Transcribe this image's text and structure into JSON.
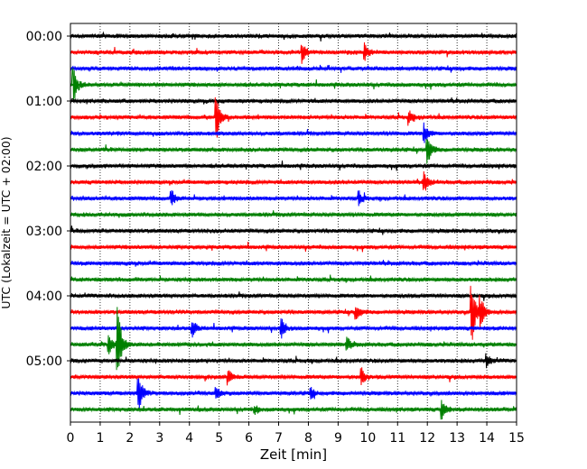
{
  "chart_data": {
    "type": "line",
    "subtype": "helicorder",
    "xlabel": "Zeit  [min]",
    "ylabel": "UTC (Lokalzeit = UTC + 02:00)",
    "xlim": [
      0,
      15
    ],
    "x_ticks": [
      "0",
      "1",
      "2",
      "3",
      "4",
      "5",
      "6",
      "7",
      "8",
      "9",
      "10",
      "11",
      "12",
      "13",
      "14",
      "15"
    ],
    "row_minutes": 15,
    "row_time_labels": [
      "00:00",
      "01:00",
      "02:00",
      "03:00",
      "04:00",
      "05:00"
    ],
    "vertical_grid": "dotted, every 1 min",
    "trace_color_cycle": [
      "#000000",
      "#ff0000",
      "#0000ff",
      "#008000"
    ],
    "traces": [
      {
        "row": 0,
        "start": "00:00",
        "color": "#000000",
        "events": []
      },
      {
        "row": 1,
        "start": "00:15",
        "color": "#ff0000",
        "events": [
          {
            "t": 7.8,
            "amp": 0.6
          },
          {
            "t": 9.9,
            "amp": 0.5
          }
        ]
      },
      {
        "row": 2,
        "start": "00:30",
        "color": "#0000ff",
        "events": []
      },
      {
        "row": 3,
        "start": "00:45",
        "color": "#008000",
        "events": [
          {
            "t": 0.1,
            "amp": 1.2
          }
        ]
      },
      {
        "row": 4,
        "start": "01:00",
        "color": "#000000",
        "events": []
      },
      {
        "row": 5,
        "start": "01:15",
        "color": "#ff0000",
        "events": [
          {
            "t": 4.9,
            "amp": 1.6
          },
          {
            "t": 11.4,
            "amp": 0.4
          }
        ]
      },
      {
        "row": 6,
        "start": "01:30",
        "color": "#0000ff",
        "events": [
          {
            "t": 11.9,
            "amp": 0.6
          }
        ]
      },
      {
        "row": 7,
        "start": "01:45",
        "color": "#008000",
        "events": [
          {
            "t": 12.0,
            "amp": 0.9
          }
        ]
      },
      {
        "row": 8,
        "start": "02:00",
        "color": "#000000",
        "events": []
      },
      {
        "row": 9,
        "start": "02:15",
        "color": "#ff0000",
        "events": [
          {
            "t": 11.9,
            "amp": 0.6
          }
        ]
      },
      {
        "row": 10,
        "start": "02:30",
        "color": "#0000ff",
        "events": [
          {
            "t": 3.4,
            "amp": 0.5
          },
          {
            "t": 9.7,
            "amp": 0.4
          }
        ]
      },
      {
        "row": 11,
        "start": "02:45",
        "color": "#008000",
        "events": []
      },
      {
        "row": 12,
        "start": "03:00",
        "color": "#000000",
        "events": []
      },
      {
        "row": 13,
        "start": "03:15",
        "color": "#ff0000",
        "events": []
      },
      {
        "row": 14,
        "start": "03:30",
        "color": "#0000ff",
        "events": []
      },
      {
        "row": 15,
        "start": "03:45",
        "color": "#008000",
        "events": []
      },
      {
        "row": 16,
        "start": "04:00",
        "color": "#000000",
        "events": []
      },
      {
        "row": 17,
        "start": "04:15",
        "color": "#ff0000",
        "events": [
          {
            "t": 9.6,
            "amp": 0.5
          },
          {
            "t": 13.5,
            "amp": 2.0
          },
          {
            "t": 13.8,
            "amp": 0.8
          }
        ]
      },
      {
        "row": 18,
        "start": "04:30",
        "color": "#0000ff",
        "events": [
          {
            "t": 4.1,
            "amp": 0.5
          },
          {
            "t": 7.1,
            "amp": 0.6
          }
        ]
      },
      {
        "row": 19,
        "start": "04:45",
        "color": "#008000",
        "events": [
          {
            "t": 1.3,
            "amp": 0.6
          },
          {
            "t": 1.6,
            "amp": 2.2
          },
          {
            "t": 9.3,
            "amp": 0.4
          }
        ]
      },
      {
        "row": 20,
        "start": "05:00",
        "color": "#000000",
        "events": [
          {
            "t": 14.0,
            "amp": 0.4
          }
        ]
      },
      {
        "row": 21,
        "start": "05:15",
        "color": "#ff0000",
        "events": [
          {
            "t": 5.3,
            "amp": 0.5
          },
          {
            "t": 9.8,
            "amp": 0.5
          }
        ]
      },
      {
        "row": 22,
        "start": "05:30",
        "color": "#0000ff",
        "events": [
          {
            "t": 2.3,
            "amp": 1.1
          },
          {
            "t": 4.9,
            "amp": 0.4
          },
          {
            "t": 8.1,
            "amp": 0.3
          }
        ]
      },
      {
        "row": 23,
        "start": "05:45",
        "color": "#008000",
        "events": [
          {
            "t": 6.2,
            "amp": 0.3
          },
          {
            "t": 12.5,
            "amp": 0.6
          }
        ]
      }
    ]
  }
}
